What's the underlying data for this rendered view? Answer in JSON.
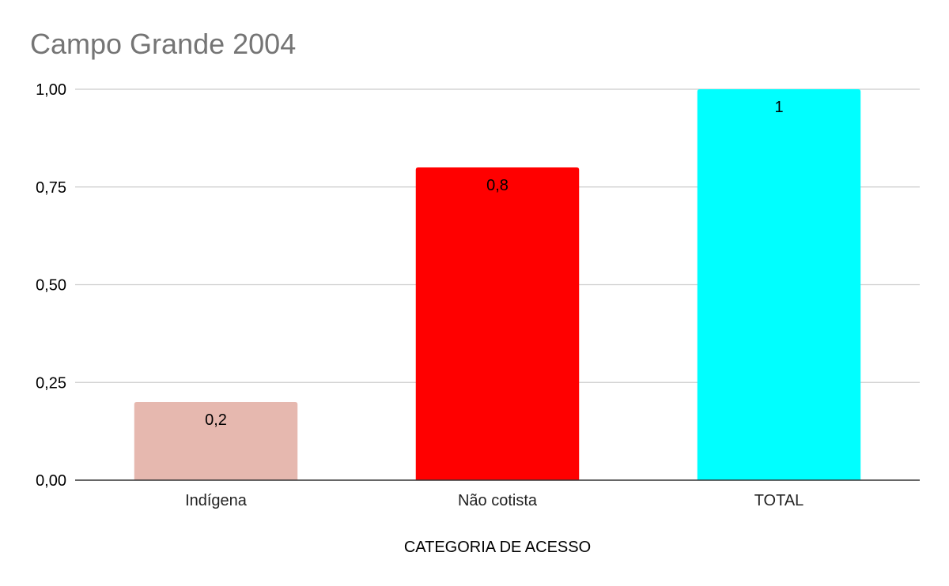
{
  "chart_data": {
    "type": "bar",
    "title": "Campo Grande 2004",
    "xlabel": "CATEGORIA DE ACESSO",
    "ylabel": "",
    "categories": [
      "Indígena",
      "Não cotista",
      "TOTAL"
    ],
    "values": [
      0.2,
      0.8,
      1
    ],
    "data_labels": [
      "0,2",
      "0,8",
      "1"
    ],
    "colors": [
      "#e6b8af",
      "#ff0000",
      "#00ffff"
    ],
    "ylim": [
      0,
      1
    ],
    "yticks": [
      0,
      0.25,
      0.5,
      0.75,
      1
    ],
    "ytick_labels": [
      "0,00",
      "0,25",
      "0,50",
      "0,75",
      "1,00"
    ],
    "grid": true,
    "legend": "none"
  }
}
